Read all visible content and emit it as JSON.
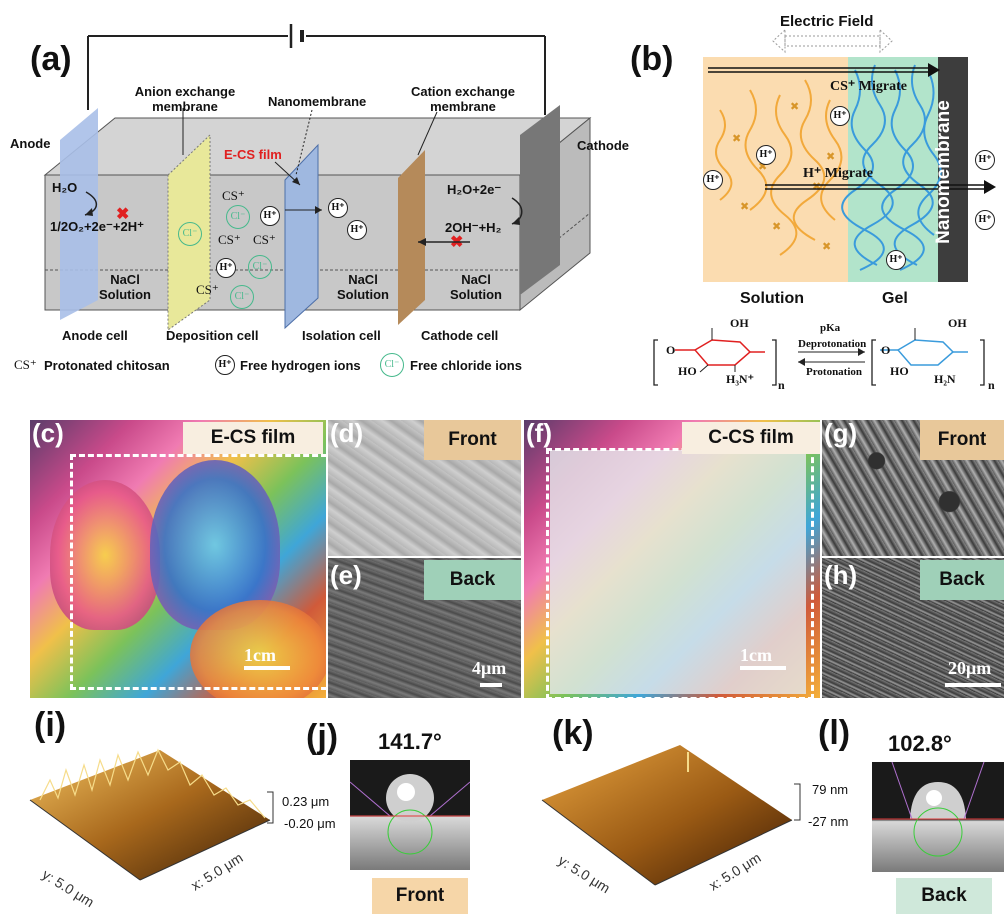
{
  "panel_a": {
    "label": "(a)",
    "anode": "Anode",
    "cathode": "Cathode",
    "anion_membrane": [
      "Anion exchange",
      "membrane"
    ],
    "nanomembrane": "Nanomembrane",
    "cation_membrane": [
      "Cation exchange",
      "membrane"
    ],
    "ecs_film": "E-CS film",
    "anode_eq_top": "H₂O",
    "anode_eq_bottom": "1/2O₂+2e⁻+2H⁺",
    "cathode_eq_top": "H₂O+2e⁻",
    "cathode_eq_bottom": "2OH⁻+H₂",
    "solution_label": [
      "NaCl",
      "Solution"
    ],
    "cells": [
      "Anode cell",
      "Deposition cell",
      "Isolation cell",
      "Cathode cell"
    ],
    "ion_h": "H⁺",
    "ion_cl": "Cl⁻",
    "ion_cs": "CS⁺",
    "legend": {
      "cs_symbol": "CS⁺",
      "cs_text": "Protonated chitosan",
      "h_text": "Free hydrogen ions",
      "cl_text": "Free chloride ions"
    }
  },
  "panel_b": {
    "label": "(b)",
    "electric_field": "Electric Field",
    "cs_migrate": "CS⁺ Migrate",
    "h_migrate": "H⁺ Migrate",
    "nanomembrane": "Nanomembrane",
    "solution": "Solution",
    "gel": "Gel",
    "pka": "pKa",
    "deprotonation": "Deprotonation",
    "protonation": "Protonation",
    "oh": "OH",
    "ho": "HO",
    "h3n": "H₃N⁺",
    "h2n": "H₂N",
    "o": "O",
    "n": "n"
  },
  "panel_c": {
    "label": "(c)",
    "title": "E-CS film",
    "scale": "1cm"
  },
  "panel_d": {
    "label": "(d)",
    "tag": "Front"
  },
  "panel_e": {
    "label": "(e)",
    "tag": "Back",
    "scale": "4μm"
  },
  "panel_f": {
    "label": "(f)",
    "title": "C-CS film",
    "scale": "1cm"
  },
  "panel_g": {
    "label": "(g)",
    "tag": "Front"
  },
  "panel_h": {
    "label": "(h)",
    "tag": "Back",
    "scale": "20μm"
  },
  "panel_i": {
    "label": "(i)",
    "zmax": "0.23 μm",
    "zmin": "-0.20 μm",
    "y_axis": "y: 5.0 μm",
    "x_axis": "x: 5.0 μm"
  },
  "panel_j": {
    "label": "(j)",
    "angle": "141.7°",
    "tag": "Front"
  },
  "panel_k": {
    "label": "(k)",
    "zmax": "79 nm",
    "zmin": "-27 nm",
    "y_axis": "y: 5.0 μm",
    "x_axis": "x: 5.0 μm"
  },
  "panel_l": {
    "label": "(l)",
    "angle": "102.8°",
    "tag": "Back"
  },
  "colors": {
    "tag_orange": "#f6d6a8",
    "tag_green": "#cfe8da",
    "membrane_yellow": "#e8e89a",
    "membrane_blue": "#9fb8e0",
    "membrane_brown": "#b58a5a",
    "chitosan_orange": "#f2a93b",
    "chitosan_blue": "#3a9bdc"
  }
}
